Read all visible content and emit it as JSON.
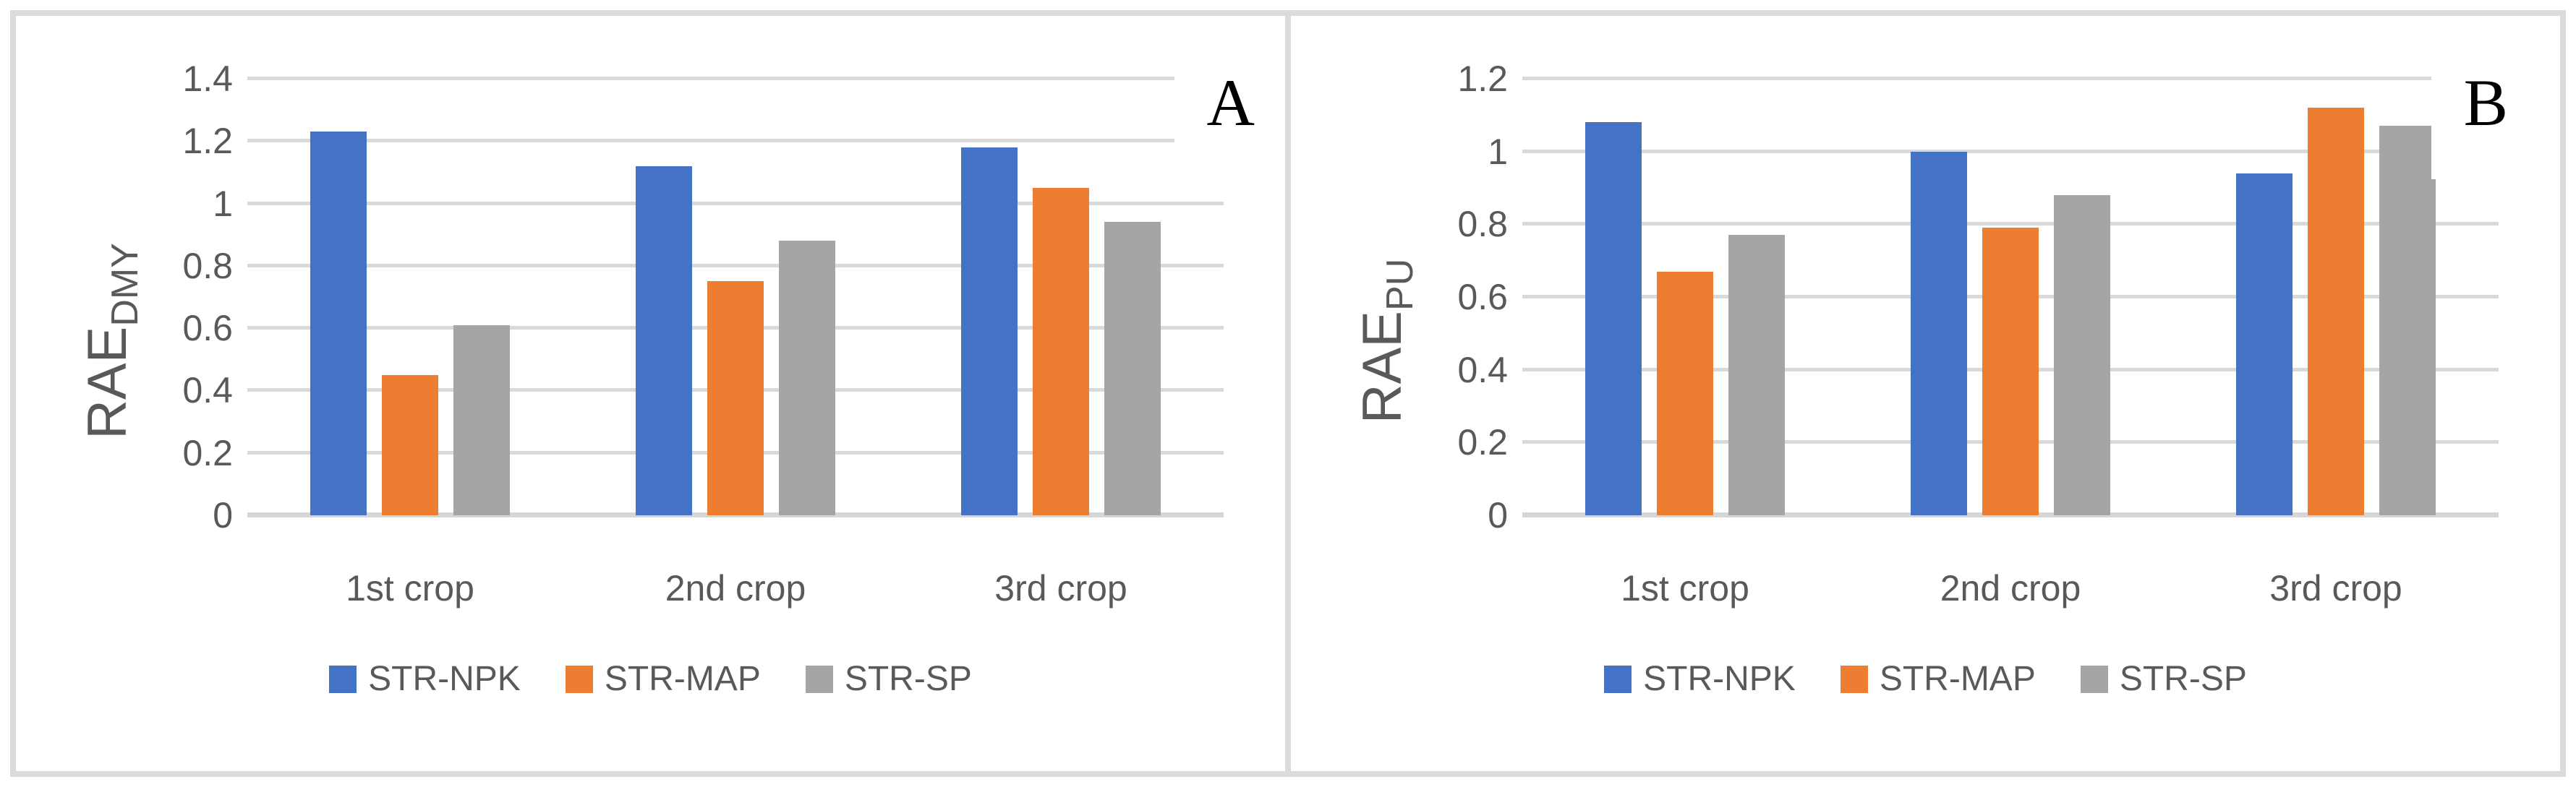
{
  "figure": {
    "panel_labels": [
      "A",
      "B"
    ]
  },
  "chart_data": [
    {
      "type": "bar",
      "panel_label": "A",
      "title": "",
      "ylabel_main": "RAE",
      "ylabel_sub": "DMY",
      "xlabel": "",
      "categories": [
        "1st crop",
        "2nd crop",
        "3rd crop"
      ],
      "series": [
        {
          "name": "STR-NPK",
          "color": "#4472C4",
          "values": [
            1.23,
            1.12,
            1.18
          ]
        },
        {
          "name": "STR-MAP",
          "color": "#ED7D31",
          "values": [
            0.45,
            0.75,
            1.05
          ]
        },
        {
          "name": "STR-SP",
          "color": "#A5A5A5",
          "values": [
            0.61,
            0.88,
            0.94
          ]
        }
      ],
      "ylim": [
        0,
        1.4
      ],
      "ytick_step": 0.2,
      "ytick_labels": [
        "0",
        "0.2",
        "0.4",
        "0.6",
        "0.8",
        "1",
        "1.2",
        "1.4"
      ],
      "grid": true,
      "legend_position": "bottom"
    },
    {
      "type": "bar",
      "panel_label": "B",
      "title": "",
      "ylabel_main": "RAE",
      "ylabel_sub": "PU",
      "xlabel": "",
      "categories": [
        "1st crop",
        "2nd crop",
        "3rd crop"
      ],
      "series": [
        {
          "name": "STR-NPK",
          "color": "#4472C4",
          "values": [
            1.08,
            1.0,
            0.94
          ]
        },
        {
          "name": "STR-MAP",
          "color": "#ED7D31",
          "values": [
            0.67,
            0.79,
            1.12
          ]
        },
        {
          "name": "STR-SP",
          "color": "#A5A5A5",
          "values": [
            0.77,
            0.88,
            1.07
          ]
        }
      ],
      "ylim": [
        0,
        1.2
      ],
      "ytick_step": 0.2,
      "ytick_labels": [
        "0",
        "0.2",
        "0.4",
        "0.6",
        "0.8",
        "1",
        "1.2"
      ],
      "grid": true,
      "legend_position": "bottom"
    }
  ]
}
